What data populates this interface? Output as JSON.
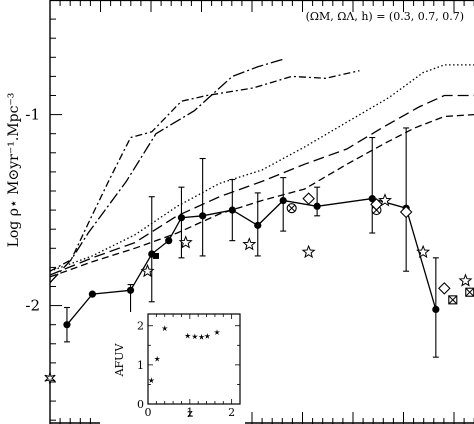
{
  "chart_data": {
    "type": "scatter",
    "ylabel": "Log ρ⋆ M⊙yr⁻¹.Mpc⁻³",
    "cosmology_label": "(ΩM, ΩΛ, h) = (0.3, 0.7, 0.7)",
    "y_ticks": [
      "-1",
      "-2"
    ],
    "ylim": [
      -2.62,
      -0.4
    ],
    "xlim": [
      0,
      1
    ],
    "grid": false,
    "lines": [
      {
        "style": "solid-with-points",
        "x": [
          0.04,
          0.1,
          0.19,
          0.24,
          0.28,
          0.31,
          0.36,
          0.43,
          0.49,
          0.55,
          0.63,
          0.76,
          0.84,
          0.91
        ],
        "y": [
          -2.1,
          -1.94,
          -1.92,
          -1.73,
          -1.66,
          -1.54,
          -1.53,
          -1.5,
          -1.58,
          -1.45,
          -1.48,
          -1.44,
          -1.49,
          -2.02
        ]
      },
      {
        "style": "dash-dot-squares",
        "x": [
          0.0,
          0.05,
          0.09,
          0.14,
          0.19,
          0.24,
          0.31,
          0.37,
          0.48,
          0.57,
          0.65,
          0.73
        ],
        "y": [
          -1.82,
          -1.76,
          -1.57,
          -1.34,
          -1.12,
          -1.09,
          -0.93,
          -0.9,
          -0.86,
          -0.8,
          -0.81,
          -0.77
        ]
      },
      {
        "style": "long-dash-dot-points",
        "x": [
          0.0,
          0.05,
          0.09,
          0.18,
          0.25,
          0.34,
          0.43,
          0.49,
          0.55
        ],
        "y": [
          -1.88,
          -1.76,
          -1.62,
          -1.35,
          -1.1,
          -0.98,
          -0.8,
          -0.75,
          -0.71
        ]
      },
      {
        "style": "dotted",
        "x": [
          0.0,
          0.1,
          0.2,
          0.3,
          0.4,
          0.5,
          0.6,
          0.7,
          0.8,
          0.88,
          0.93,
          1.0
        ],
        "y": [
          -1.82,
          -1.74,
          -1.63,
          -1.48,
          -1.36,
          -1.29,
          -1.17,
          -1.04,
          -0.91,
          -0.78,
          -0.74,
          -0.74
        ]
      },
      {
        "style": "long-dash",
        "x": [
          0.0,
          0.1,
          0.2,
          0.3,
          0.4,
          0.5,
          0.6,
          0.7,
          0.79,
          0.87,
          0.93,
          1.0
        ],
        "y": [
          -1.84,
          -1.75,
          -1.67,
          -1.53,
          -1.43,
          -1.35,
          -1.26,
          -1.18,
          -1.06,
          -0.96,
          -0.9,
          -0.9
        ]
      },
      {
        "style": "short-dash",
        "x": [
          0.0,
          0.1,
          0.2,
          0.3,
          0.4,
          0.5,
          0.6,
          0.7,
          0.79,
          0.86,
          0.93,
          1.0
        ],
        "y": [
          -1.85,
          -1.77,
          -1.7,
          -1.62,
          -1.52,
          -1.45,
          -1.39,
          -1.26,
          -1.15,
          -1.07,
          -1.01,
          -1.0
        ]
      }
    ],
    "error_bars": [
      {
        "x": 0.04,
        "y": -2.1,
        "lo": -2.19,
        "hi": -2.01
      },
      {
        "x": 0.19,
        "y": -1.92,
        "lo": -2.15,
        "hi": -1.89
      },
      {
        "x": 0.24,
        "y": -1.73,
        "lo": -1.98,
        "hi": -1.43
      },
      {
        "x": 0.31,
        "y": -1.54,
        "lo": -1.75,
        "hi": -1.38
      },
      {
        "x": 0.36,
        "y": -1.53,
        "lo": -1.74,
        "hi": -1.23
      },
      {
        "x": 0.43,
        "y": -1.5,
        "lo": -1.66,
        "hi": -1.34
      },
      {
        "x": 0.49,
        "y": -1.58,
        "lo": -1.74,
        "hi": -1.41
      },
      {
        "x": 0.55,
        "y": -1.45,
        "lo": -1.61,
        "hi": -1.33
      },
      {
        "x": 0.63,
        "y": -1.48,
        "lo": -1.53,
        "hi": -1.38
      },
      {
        "x": 0.76,
        "y": -1.44,
        "lo": -1.62,
        "hi": -1.12
      },
      {
        "x": 0.84,
        "y": -1.49,
        "lo": -1.82,
        "hi": -1.07
      },
      {
        "x": 0.91,
        "y": -2.02,
        "lo": -2.27,
        "hi": -1.75
      }
    ],
    "markers": [
      {
        "symbol": "filled-circle",
        "x": [
          0.04,
          0.1,
          0.19,
          0.24,
          0.28,
          0.31,
          0.36,
          0.43,
          0.49,
          0.55,
          0.63,
          0.76,
          0.84,
          0.91
        ],
        "y": [
          -2.1,
          -1.94,
          -1.92,
          -1.73,
          -1.66,
          -1.54,
          -1.53,
          -1.5,
          -1.58,
          -1.45,
          -1.48,
          -1.44,
          -1.49,
          -2.02
        ]
      },
      {
        "symbol": "filled-square",
        "x": [
          0.25,
          0.19
        ],
        "y": [
          -1.74,
          -2.05
        ]
      },
      {
        "symbol": "open-star",
        "x": [
          0.23,
          0.32,
          0.47,
          0.61,
          0.79,
          0.88,
          0.98
        ],
        "y": [
          -1.82,
          -1.67,
          -1.68,
          -1.72,
          -1.45,
          -1.72,
          -1.87
        ]
      },
      {
        "symbol": "circle-cross",
        "x": [
          0.57,
          0.77
        ],
        "y": [
          -1.49,
          -1.5
        ]
      },
      {
        "symbol": "open-diamond",
        "x": [
          0.61,
          0.77,
          0.84,
          0.93
        ],
        "y": [
          -1.44,
          -1.47,
          -1.51,
          -1.91
        ]
      },
      {
        "symbol": "square-cross",
        "x": [
          0.95,
          0.99
        ],
        "y": [
          -1.97,
          -1.93
        ]
      },
      {
        "symbol": "open-star-6",
        "x": [
          0.0
        ],
        "y": [
          -2.38
        ]
      }
    ],
    "inset": {
      "xlabel": "z",
      "ylabel": "AFUV",
      "x_ticks": [
        "0",
        "1",
        "2"
      ],
      "y_ticks": [
        "0",
        "1",
        "2"
      ],
      "xlim": [
        0,
        2.2
      ],
      "ylim": [
        0,
        2.3
      ],
      "series": {
        "x": [
          0.08,
          0.22,
          0.4,
          0.95,
          1.12,
          1.28,
          1.42,
          1.65
        ],
        "y": [
          0.6,
          1.15,
          1.93,
          1.74,
          1.72,
          1.71,
          1.73,
          1.83
        ]
      }
    }
  }
}
